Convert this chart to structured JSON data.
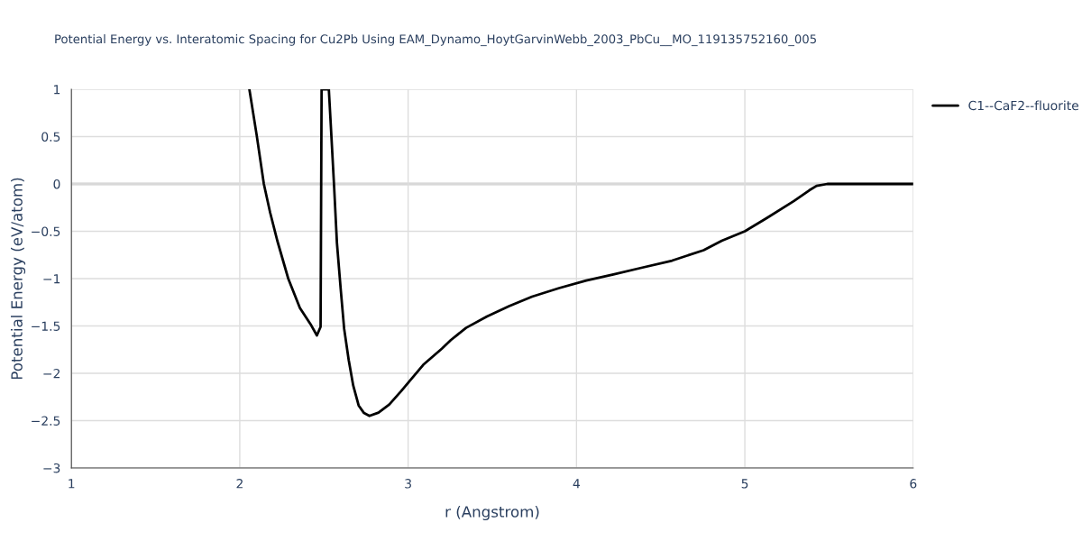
{
  "chart_data": {
    "type": "line",
    "title": "Potential Energy vs. Interatomic Spacing for Cu2Pb Using EAM_Dynamo_HoytGarvinWebb_2003_PbCu__MO_119135752160_005",
    "xlabel": "r (Angstrom)",
    "ylabel": "Potential Energy (eV/atom)",
    "series": [
      {
        "name": "C1--CaF2--fluorite",
        "color": "#000000",
        "x": [
          2.057,
          2.1,
          2.143,
          2.18,
          2.223,
          2.288,
          2.357,
          2.42,
          2.458,
          2.48,
          2.486,
          2.529,
          2.545,
          2.561,
          2.577,
          2.599,
          2.62,
          2.647,
          2.674,
          2.706,
          2.738,
          2.77,
          2.824,
          2.888,
          2.958,
          3.038,
          3.09,
          3.2,
          3.253,
          3.344,
          3.468,
          3.6,
          3.736,
          3.897,
          4.058,
          4.219,
          4.38,
          4.568,
          4.755,
          4.863,
          5.0,
          5.131,
          5.292,
          5.383,
          5.426,
          5.49,
          6.0
        ],
        "values": [
          1.0,
          0.52,
          0.0,
          -0.3,
          -0.6,
          -1.0,
          -1.31,
          -1.48,
          -1.6,
          -1.51,
          1.0,
          1.0,
          0.48,
          -0.05,
          -0.62,
          -1.1,
          -1.53,
          -1.86,
          -2.13,
          -2.34,
          -2.42,
          -2.45,
          -2.415,
          -2.33,
          -2.19,
          -2.02,
          -1.91,
          -1.74,
          -1.65,
          -1.52,
          -1.4,
          -1.29,
          -1.19,
          -1.1,
          -1.02,
          -0.955,
          -0.888,
          -0.81,
          -0.7,
          -0.6,
          -0.5,
          -0.36,
          -0.18,
          -0.067,
          -0.02,
          0.0,
          0.0
        ]
      }
    ],
    "xlim": [
      1,
      6
    ],
    "xticks": [
      1,
      2,
      3,
      4,
      5,
      6
    ],
    "ylim": [
      -3,
      1
    ],
    "yticks": [
      -3,
      -2.5,
      -2,
      -1.5,
      -1,
      -0.5,
      0,
      0.5,
      1
    ],
    "grid": true,
    "legend": "top right",
    "marker": "none",
    "line_style": "solid"
  }
}
